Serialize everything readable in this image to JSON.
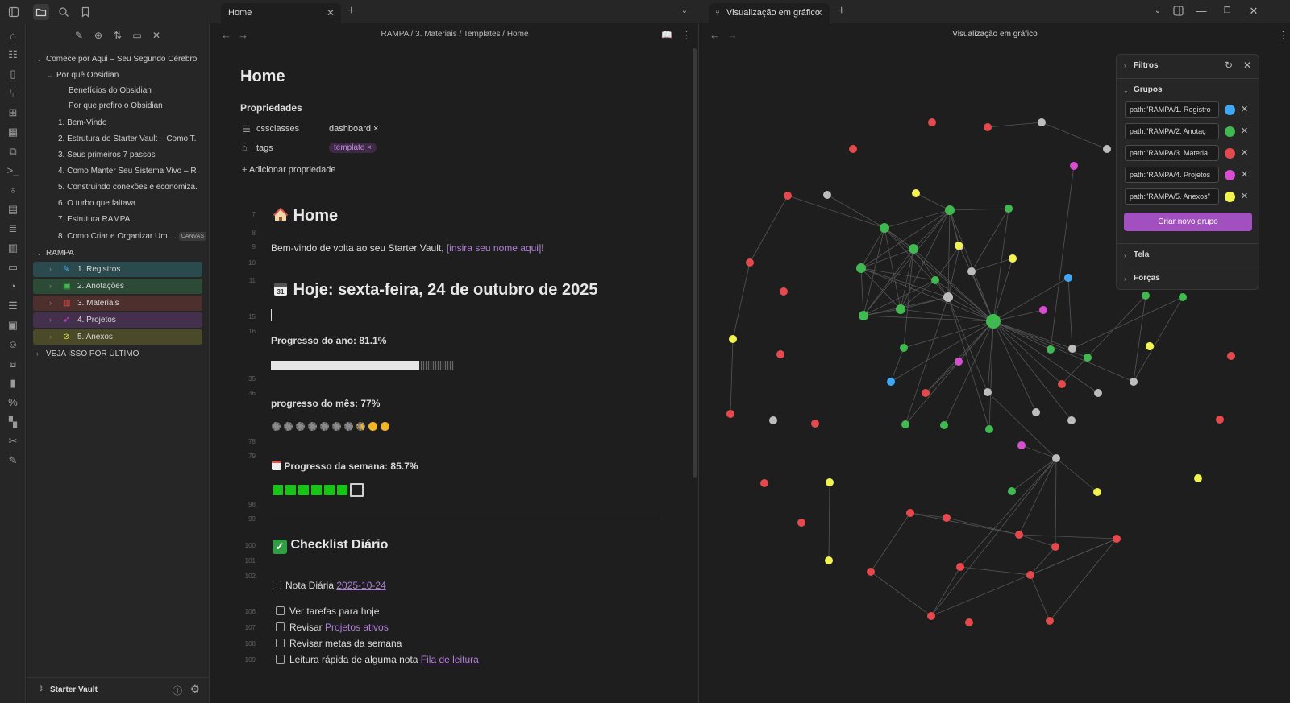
{
  "tabs": {
    "left": {
      "label": "Home"
    },
    "right": {
      "label": "Visualização em gráfico"
    }
  },
  "explorer": {
    "items": [
      {
        "label": "Comece por Aqui – Seu Segundo Cérebro"
      },
      {
        "label": "Por quê Obsidian"
      },
      {
        "label": "Benefícios do Obsidian"
      },
      {
        "label": "Por que prefiro o Obsidian"
      },
      {
        "label": "1. Bem-Vindo"
      },
      {
        "label": "2. Estrutura do Starter Vault – Como T..."
      },
      {
        "label": "3. Seus primeiros 7 passos"
      },
      {
        "label": "4. Como Manter Seu Sistema Vivo – Ri..."
      },
      {
        "label": "5. Construindo conexões e economiza..."
      },
      {
        "label": "6. O turbo que faltava"
      },
      {
        "label": "7. Estrutura RAMPA"
      },
      {
        "label": "8. Como Criar e Organizar Um ...",
        "badge": "CANVAS"
      },
      {
        "label": "RAMPA"
      }
    ],
    "folders": [
      {
        "label": "1. Registros",
        "color": "#2b4a4e"
      },
      {
        "label": "2. Anotações",
        "color": "#2c4a35"
      },
      {
        "label": "3. Materiais",
        "color": "#4d302e"
      },
      {
        "label": "4. Projetos",
        "color": "#44304d"
      },
      {
        "label": "5. Anexos",
        "color": "#4a4a28"
      }
    ],
    "last": {
      "label": "VEJA ISSO POR ÚLTIMO"
    },
    "vault": {
      "name": "Starter Vault"
    }
  },
  "editor": {
    "breadcrumb": "RAMPA / 3. Materiais / Templates / Home",
    "title": "Home",
    "properties_heading": "Propriedades",
    "props": [
      {
        "key": "cssclasses",
        "value": "dashboard ×"
      },
      {
        "key": "tags",
        "value": "template ×"
      }
    ],
    "add_property": "Adicionar propriedade",
    "line_numbers": [
      "7",
      "8",
      "9",
      "10",
      "11",
      "15",
      "16",
      "35",
      "36",
      "78",
      "79",
      "98",
      "99",
      "100",
      "101",
      "102",
      "106",
      "107",
      "108",
      "109"
    ],
    "home_heading": "Home",
    "welcome_pre": "Bem-vindo de volta ao seu Starter Vault, ",
    "welcome_link": "[insira seu nome aqui]",
    "welcome_post": "!",
    "today_heading": "Hoje: sexta-feira, 24 de outubro de 2025",
    "year_progress": "Progresso do ano: 81.1%",
    "month_progress": "progresso do mês: 77%",
    "week_progress": "Progresso da semana: 85.7%",
    "checklist_heading": "Checklist Diário",
    "daily_note_label": "Nota Diária ",
    "daily_note_link": "2025-10-24",
    "tasks": [
      {
        "pre": "Ver tarefas para hoje",
        "link": ""
      },
      {
        "pre": "Revisar ",
        "link": "Projetos ativos"
      },
      {
        "pre": "Revisar metas da semana",
        "link": ""
      },
      {
        "pre": "Leitura rápida de alguma nota ",
        "link": "Fila de leitura"
      }
    ]
  },
  "progress": {
    "year": 81.1,
    "month": 77,
    "week": 85.7
  },
  "graph": {
    "title": "Visualização em gráfico",
    "filters_label": "Filtros",
    "groups_label": "Grupos",
    "groups": [
      {
        "query": "path:\"RAMPA/1. Registro",
        "color": "#3ea8f5"
      },
      {
        "query": "path:\"RAMPA/2. Anotaç",
        "color": "#3fb950"
      },
      {
        "query": "path:\"RAMPA/3. Materia",
        "color": "#e5484d"
      },
      {
        "query": "path:\"RAMPA/4. Projetos",
        "color": "#d74fd0"
      },
      {
        "query": "path:\"RAMPA/5. Anexos\"",
        "color": "#f2f252"
      }
    ],
    "new_group": "Criar novo grupo",
    "display_label": "Tela",
    "forces_label": "Forças",
    "node_colors": {
      "registro": "#3ea8f5",
      "anotacao": "#3fb950",
      "material": "#e5484d",
      "projeto": "#d74fd0",
      "anexo": "#f2f252",
      "other": "#bdbdbd"
    }
  }
}
